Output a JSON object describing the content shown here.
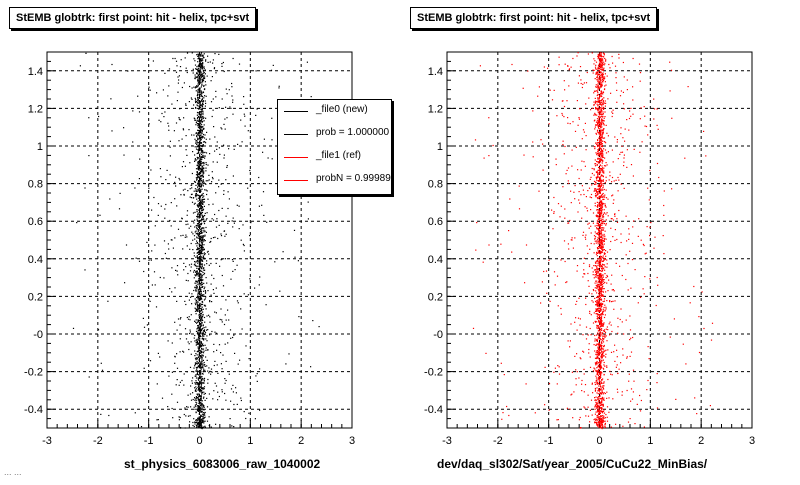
{
  "panels": [
    {
      "title": "StEMB globtrk: first point: hit - helix, tpc+svt",
      "xlabel": "st_physics_6083006_raw_1040002",
      "marker_color": "#000000"
    },
    {
      "title": "StEMB globtrk: first point: hit - helix, tpc+svt",
      "xlabel": "dev/daq_sl302/Sat/year_2005/CuCu22_MinBias/",
      "marker_color": "#ff0000"
    }
  ],
  "legend": [
    {
      "label": "_file0 (new)",
      "color": "#000000"
    },
    {
      "label": "prob = 1.000000",
      "color": "#000000"
    },
    {
      "label": "_file1 (ref)",
      "color": "#ff0000"
    },
    {
      "label": "probN = 0.999890",
      "color": "#ff0000"
    }
  ],
  "footer": "... ...",
  "chart_data": [
    {
      "type": "scatter",
      "title": "StEMB globtrk: first point: hit - helix, tpc+svt",
      "xlabel": "st_physics_6083006_raw_1040002",
      "ylabel": "",
      "xlim": [
        -3,
        3
      ],
      "ylim": [
        -0.5,
        1.5
      ],
      "x_ticks": [
        "-3",
        "-2",
        "-1",
        "0",
        "1",
        "2",
        "3"
      ],
      "y_ticks": [
        "-0.4",
        "-0.2",
        "-0",
        "0.2",
        "0.4",
        "0.6",
        "0.8",
        "1",
        "1.2",
        "1.4"
      ],
      "grid": true,
      "legend_position": "top-right",
      "series": [
        {
          "name": "_file0 (new)",
          "color": "#000000",
          "center_x": 0.0,
          "core_width": 0.1,
          "tail_width": 0.5,
          "y_range": [
            -0.5,
            1.5
          ]
        }
      ]
    },
    {
      "type": "scatter",
      "title": "StEMB globtrk: first point: hit - helix, tpc+svt",
      "xlabel": "dev/daq_sl302/Sat/year_2005/CuCu22_MinBias/",
      "ylabel": "",
      "xlim": [
        -3,
        3
      ],
      "ylim": [
        -0.5,
        1.5
      ],
      "x_ticks": [
        "-3",
        "-2",
        "-1",
        "0",
        "1",
        "2",
        "3"
      ],
      "y_ticks": [
        "-0.4",
        "-0.2",
        "-0",
        "0.2",
        "0.4",
        "0.6",
        "0.8",
        "1",
        "1.2",
        "1.4"
      ],
      "grid": true,
      "series": [
        {
          "name": "_file1 (ref)",
          "color": "#ff0000",
          "center_x": 0.0,
          "core_width": 0.1,
          "tail_width": 0.5,
          "y_range": [
            -0.5,
            1.5
          ]
        }
      ]
    }
  ]
}
